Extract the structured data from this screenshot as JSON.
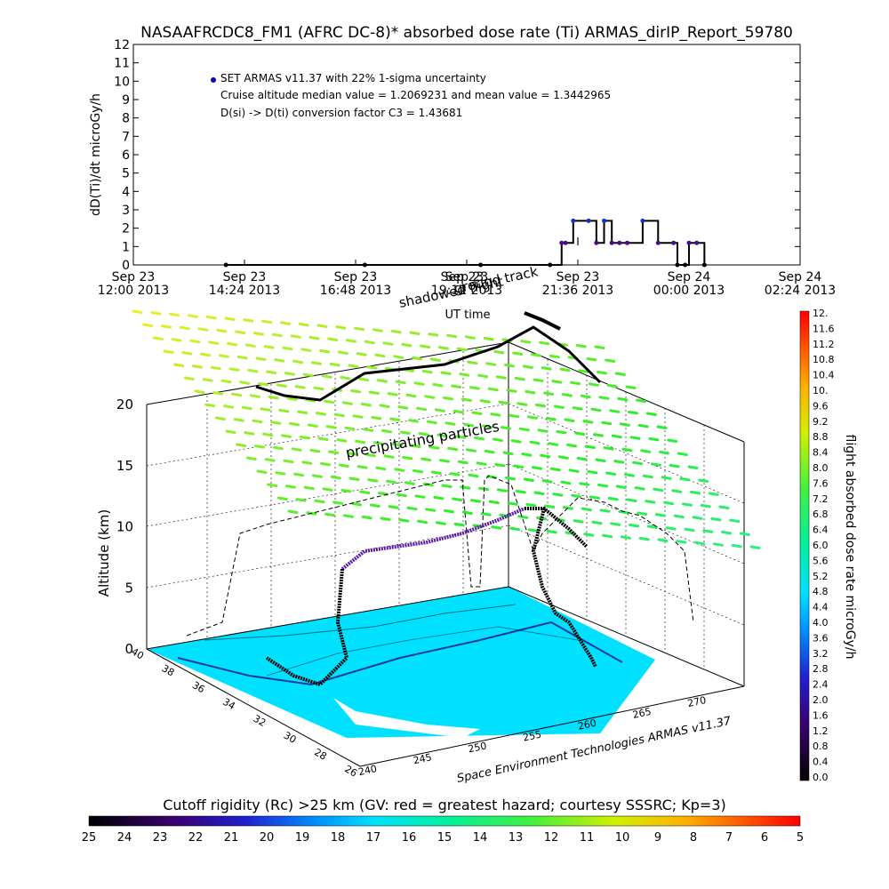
{
  "chart_data": [
    {
      "type": "line",
      "title": "NASAAFRCDC8_FM1 (AFRC DC-8)* absorbed dose rate (Ti) ARMAS_dirIP_Report_59780",
      "ylabel": "dD(Ti)/dt microGy/h",
      "xlabel": "UT time",
      "ylim": [
        0,
        12
      ],
      "yticks": [
        "0",
        "1",
        "2",
        "3",
        "4",
        "5",
        "6",
        "7",
        "8",
        "9",
        "10",
        "11",
        "12"
      ],
      "xticks": [
        {
          "day": "Sep 23",
          "time": "12:00 2013"
        },
        {
          "day": "Sep 23",
          "time": "14:24 2013"
        },
        {
          "day": "Sep 23",
          "time": "16:48 2013"
        },
        {
          "day": "Sep 23",
          "time": "19:12 2013"
        },
        {
          "day": "Sep 23",
          "time": "21:36 2013"
        },
        {
          "day": "Sep 24",
          "time": "00:00 2013"
        },
        {
          "day": "Sep 24",
          "time": "02:24 2013"
        }
      ],
      "overlay_labels": [
        "Sep 23",
        "shadowed flight",
        "ground track"
      ],
      "legend": {
        "marker_label": "SET ARMAS v11.37 with 22% 1-sigma uncertainty",
        "line2": "Cruise altitude median value = 1.2069231 and mean value = 1.3442965",
        "line3": "D(si) -> D(ti) conversion factor C3 = 1.43681"
      },
      "error_bar_note": "I",
      "series": [
        {
          "x": [
            "14:00",
            "17:00",
            "19:30",
            "21:00",
            "21:15",
            "21:20",
            "21:30",
            "21:50",
            "22:00",
            "22:10",
            "22:20",
            "22:30",
            "22:40",
            "23:00",
            "23:20",
            "23:40",
            "23:45",
            "23:55",
            "00:00",
            "00:10",
            "00:20"
          ],
          "values": [
            0,
            0,
            0,
            0,
            1.2,
            1.2,
            2.4,
            2.4,
            1.2,
            2.4,
            1.2,
            1.2,
            1.2,
            2.4,
            1.2,
            1.2,
            0,
            0,
            1.2,
            1.2,
            0
          ]
        }
      ]
    },
    {
      "type": "scatter",
      "subtype": "3d-flight-track",
      "ylabel": "Altitude (km)",
      "zticks": [
        "0",
        "5",
        "10",
        "15",
        "20"
      ],
      "lat_ticks": [
        "40",
        "38",
        "36",
        "34",
        "32",
        "30",
        "28",
        "26"
      ],
      "lon_ticks": [
        "240",
        "245",
        "250",
        "255",
        "260",
        "265",
        "270"
      ],
      "annotation": "precipitating particles",
      "credit": "Space Environment Technologies ARMAS v11.37",
      "colorbar": {
        "title": "flight absorbed dose rate microGy/h",
        "ticks": [
          "12.",
          "11.6",
          "11.2",
          "10.8",
          "10.4",
          "10.",
          "9.6",
          "9.2",
          "8.8",
          "8.4",
          "8.0",
          "7.6",
          "7.2",
          "6.8",
          "6.4",
          "6.0",
          "5.6",
          "5.2",
          "4.8",
          "4.4",
          "4.0",
          "3.6",
          "3.2",
          "2.8",
          "2.4",
          "2.0",
          "1.6",
          "1.2",
          "0.8",
          "0.4",
          "0.0"
        ]
      }
    },
    {
      "type": "heatmap",
      "subtype": "horizontal-colorbar",
      "title": "Cutoff rigidity (Rc) >25 km (GV: red = greatest hazard; courtesy SSSRC; Kp=3)",
      "ticks": [
        "25",
        "24",
        "23",
        "22",
        "21",
        "20",
        "19",
        "18",
        "17",
        "16",
        "15",
        "14",
        "13",
        "12",
        "11",
        "10",
        "9",
        "8",
        "7",
        "6",
        "5"
      ]
    }
  ]
}
